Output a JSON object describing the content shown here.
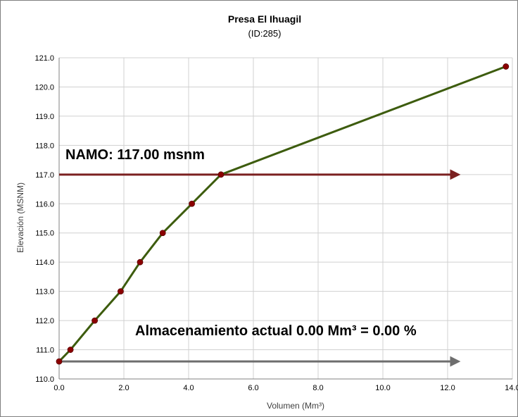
{
  "chart_data": {
    "type": "line",
    "title": "Presa El Ihuagil",
    "subtitle": "(ID:285)",
    "xlabel": "Volumen (Mm³)",
    "ylabel": "Elevación (MSNM)",
    "xlim": [
      0,
      14
    ],
    "ylim": [
      110,
      121
    ],
    "x_ticks": [
      "0.0",
      "2.0",
      "4.0",
      "6.0",
      "8.0",
      "10.0",
      "12.0",
      "14.0"
    ],
    "y_ticks": [
      "110.0",
      "111.0",
      "112.0",
      "113.0",
      "114.0",
      "115.0",
      "116.0",
      "117.0",
      "118.0",
      "119.0",
      "120.0",
      "121.0"
    ],
    "grid": true,
    "series": [
      {
        "color": "#3d5c0e",
        "marker_color": "#8b0000",
        "points": [
          {
            "x": 0.0,
            "y": 110.6
          },
          {
            "x": 0.35,
            "y": 111.0
          },
          {
            "x": 1.1,
            "y": 112.0
          },
          {
            "x": 1.9,
            "y": 113.0
          },
          {
            "x": 2.5,
            "y": 114.0
          },
          {
            "x": 3.2,
            "y": 115.0
          },
          {
            "x": 4.1,
            "y": 116.0
          },
          {
            "x": 5.0,
            "y": 117.0
          },
          {
            "x": 13.8,
            "y": 120.7
          }
        ]
      }
    ],
    "reference_lines": [
      {
        "label": "NAMO: 117.00 msnm",
        "y": 117.0,
        "x_start": 0.0,
        "x_end": 12.4,
        "color": "#7b2020"
      },
      {
        "label": "Almacenamiento actual 0.00 Mm³ = 0.00 %",
        "y": 110.6,
        "x_start": 0.0,
        "x_end": 12.4,
        "color": "#6e6e6e"
      }
    ]
  }
}
